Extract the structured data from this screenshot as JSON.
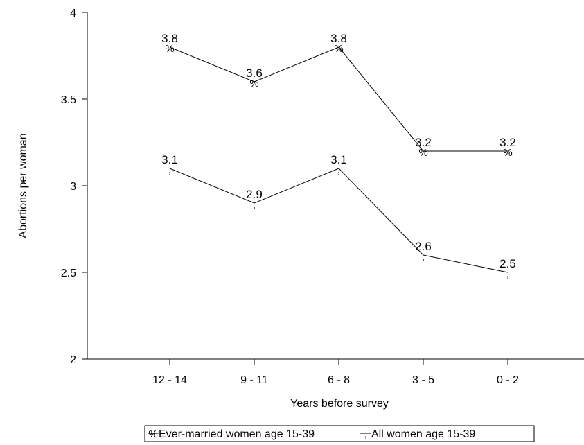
{
  "chart_data": {
    "type": "line",
    "xlabel": "Years before survey",
    "ylabel": "Abortions per woman",
    "categories": [
      "12 - 14",
      "9 - 11",
      "6 - 8",
      "3 - 5",
      "0 - 2"
    ],
    "ylim": [
      2,
      4
    ],
    "yticks": [
      {
        "value": 2,
        "label": "2"
      },
      {
        "value": 2.5,
        "label": "2.5"
      },
      {
        "value": 3,
        "label": "3"
      },
      {
        "value": 3.5,
        "label": "3.5"
      },
      {
        "value": 4,
        "label": "4"
      }
    ],
    "grid": false,
    "legend_position": "bottom",
    "series": [
      {
        "name": "Ever-married women age 15-39",
        "marker": "%",
        "values": [
          3.8,
          3.6,
          3.8,
          3.2,
          3.2
        ],
        "labels": [
          "3.8",
          "3.6",
          "3.8",
          "3.2",
          "3.2"
        ]
      },
      {
        "name": "All women age 15-39",
        "marker": ",",
        "values": [
          3.1,
          2.9,
          3.1,
          2.6,
          2.5
        ],
        "labels": [
          "3.1",
          "2.9",
          "3.1",
          "2.6",
          "2.5"
        ]
      }
    ]
  }
}
